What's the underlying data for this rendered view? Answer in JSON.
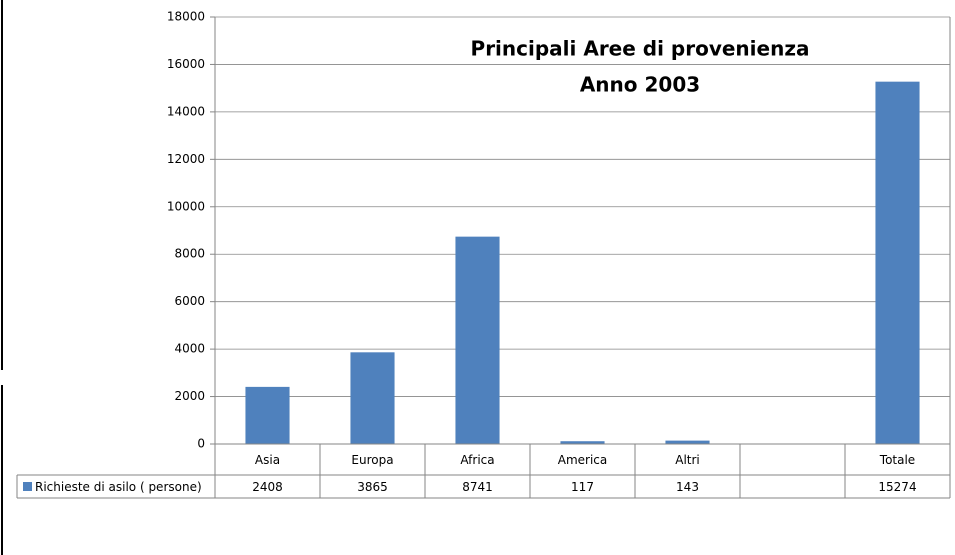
{
  "chart_data": {
    "type": "bar",
    "title": "Principali Aree di provenienza",
    "subtitle": "Anno 2003",
    "categories": [
      "Asia",
      "Europa",
      "Africa",
      "America",
      "Altri",
      null,
      "Totale"
    ],
    "series": [
      {
        "name": "Richieste di asilo ( persone)",
        "color": "#4f81bd",
        "values": [
          2408,
          3865,
          8741,
          117,
          143,
          null,
          15274
        ]
      }
    ],
    "ylim": [
      0,
      18000
    ],
    "yticks": [
      0,
      2000,
      4000,
      6000,
      8000,
      10000,
      12000,
      14000,
      16000,
      18000
    ],
    "grid": true
  }
}
